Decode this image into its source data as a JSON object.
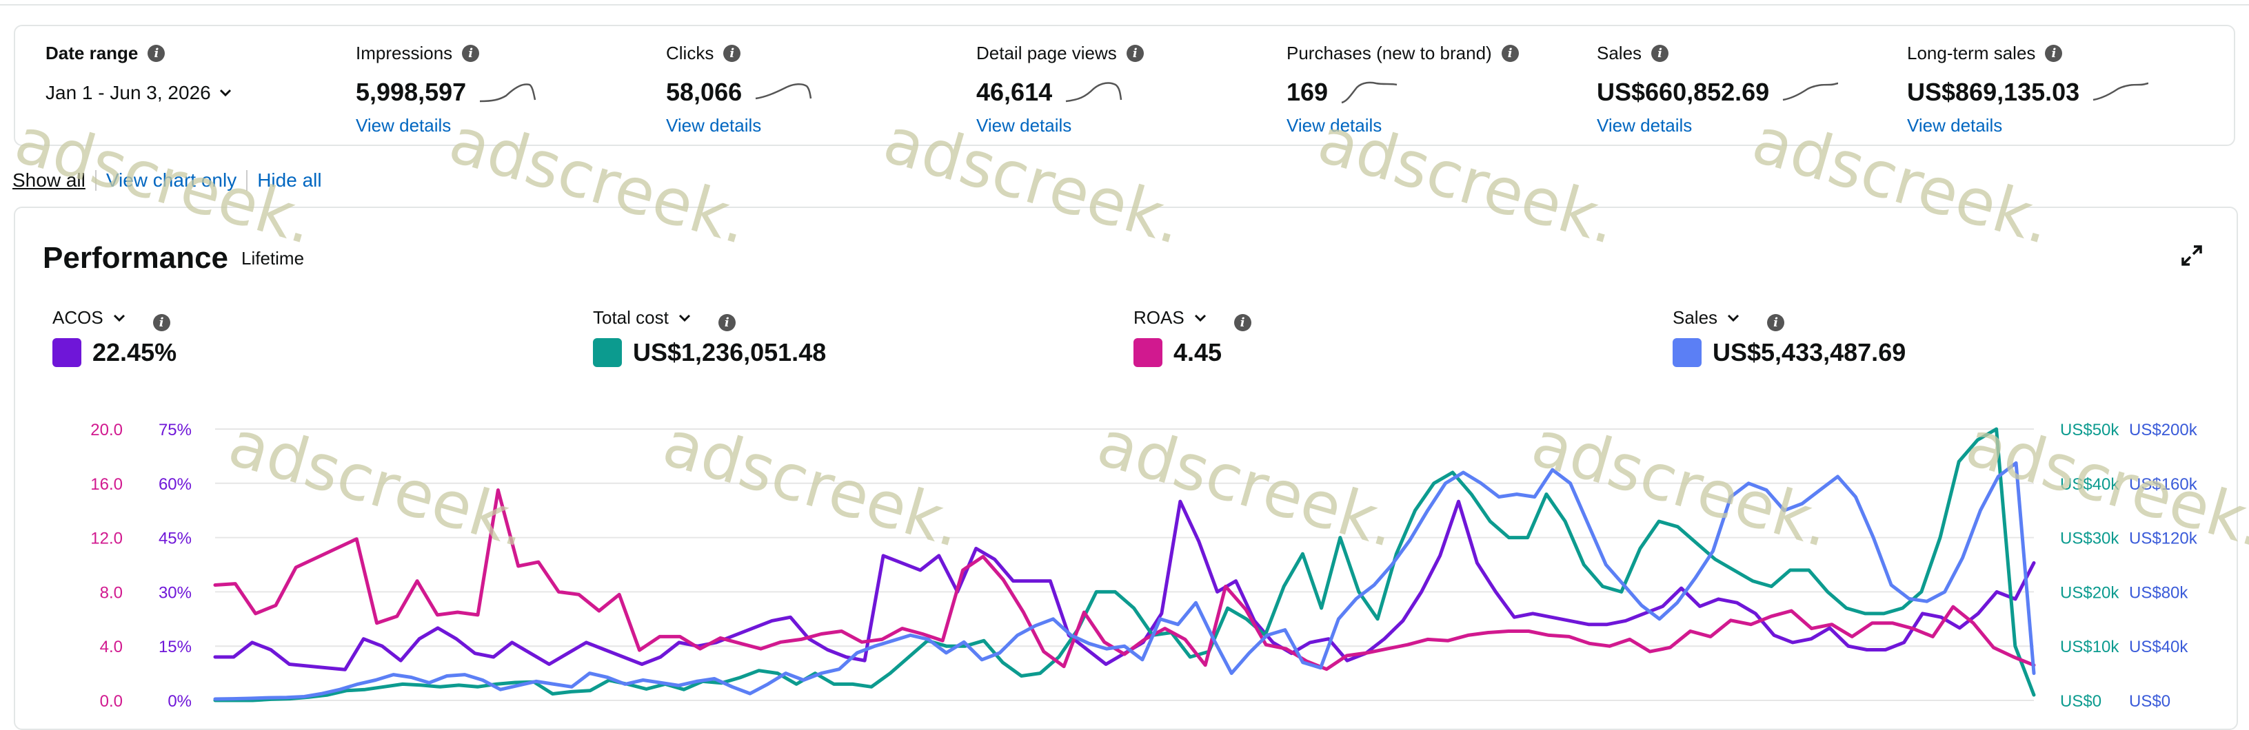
{
  "metrics": {
    "date_range": {
      "label": "Date range",
      "value": "Jan 1 - Jun 3, 2026"
    },
    "cards": [
      {
        "label": "Impressions",
        "value": "5,998,597",
        "link": "View details"
      },
      {
        "label": "Clicks",
        "value": "58,066",
        "link": "View details"
      },
      {
        "label": "Detail page views",
        "value": "46,614",
        "link": "View details"
      },
      {
        "label": "Purchases (new to brand)",
        "value": "169",
        "link": "View details"
      },
      {
        "label": "Sales",
        "value": "US$660,852.69",
        "link": "View details"
      },
      {
        "label": "Long-term sales",
        "value": "US$869,135.03",
        "link": "View details"
      }
    ]
  },
  "toggles": {
    "show_all": "Show all",
    "chart_only": "View chart only",
    "hide_all": "Hide all"
  },
  "performance": {
    "title": "Performance",
    "subtitle": "Lifetime",
    "kpis": [
      {
        "label": "ACOS",
        "value": "22.45%",
        "color": "#6f16d8"
      },
      {
        "label": "Total cost",
        "value": "US$1,236,051.48",
        "color": "#0c9b8f"
      },
      {
        "label": "ROAS",
        "value": "4.45",
        "color": "#d1198f"
      },
      {
        "label": "Sales",
        "value": "US$5,433,487.69",
        "color": "#5b7ff5"
      }
    ]
  },
  "watermark_text": "adscreek.",
  "chart_data": {
    "type": "line",
    "axes": {
      "roas_ticks": [
        "20.0",
        "16.0",
        "12.0",
        "8.0",
        "4.0",
        "0.0"
      ],
      "acos_ticks": [
        "75%",
        "60%",
        "45%",
        "30%",
        "15%",
        "0%"
      ],
      "cost_ticks": [
        "US$50k",
        "US$40k",
        "US$30k",
        "US$20k",
        "US$10k",
        "US$0"
      ],
      "sales_ticks": [
        "US$200k",
        "US$160k",
        "US$120k",
        "US$80k",
        "US$40k",
        "US$0"
      ],
      "roas_range": [
        0,
        20
      ],
      "acos_range": [
        0,
        75
      ],
      "cost_range": [
        0,
        50000
      ],
      "sales_range": [
        0,
        200000
      ]
    },
    "series": [
      {
        "name": "ACOS",
        "axis": "acos",
        "color": "#6f16d8",
        "values": [
          12,
          12,
          16,
          14,
          10,
          9.5,
          9,
          8.5,
          17,
          15,
          11,
          17,
          20,
          17,
          13,
          12,
          16,
          13,
          10,
          13,
          16,
          14,
          12,
          10,
          12,
          16,
          15,
          16,
          18,
          20,
          22,
          23,
          17,
          14,
          12,
          11,
          40,
          38,
          36,
          40,
          30,
          42,
          39,
          33,
          33,
          33,
          18,
          14,
          10,
          13,
          16,
          24,
          55,
          44,
          30,
          33,
          22,
          16,
          13,
          16,
          17,
          11,
          13,
          17,
          22,
          30,
          40,
          55,
          38,
          30,
          23,
          24,
          23,
          22,
          21,
          21,
          22,
          24,
          26,
          31,
          26,
          28,
          27,
          24,
          18,
          16,
          17,
          20,
          15,
          14,
          14,
          16,
          24,
          23,
          20,
          24,
          30,
          28,
          38
        ]
      },
      {
        "name": "Total cost",
        "axis": "cost",
        "color": "#0c9b8f",
        "values": [
          0,
          0,
          0,
          200,
          300,
          600,
          1000,
          1800,
          2000,
          2500,
          3000,
          2800,
          2500,
          2800,
          2500,
          3000,
          3300,
          3400,
          1200,
          1600,
          1800,
          3700,
          3000,
          2100,
          3000,
          2000,
          3500,
          3200,
          4200,
          5500,
          5000,
          3000,
          5000,
          3000,
          3000,
          2500,
          5000,
          8000,
          11000,
          10000,
          10000,
          11000,
          7000,
          4500,
          5000,
          8000,
          13000,
          20000,
          20000,
          17000,
          12000,
          12500,
          8000,
          9000,
          17000,
          15000,
          12000,
          21000,
          27000,
          17000,
          30000,
          20000,
          15000,
          27000,
          35000,
          40000,
          42000,
          38000,
          33000,
          30000,
          30000,
          38000,
          33000,
          25000,
          21000,
          20000,
          28000,
          33000,
          32000,
          29000,
          26000,
          24000,
          22000,
          21000,
          24000,
          24000,
          20000,
          17000,
          16000,
          16000,
          17000,
          20000,
          30000,
          44000,
          48000,
          50000,
          10000,
          1000
        ]
      },
      {
        "name": "ROAS",
        "axis": "roas",
        "color": "#d1198f",
        "values": [
          8.5,
          8.6,
          6.4,
          7,
          9.8,
          10.5,
          11.2,
          11.9,
          5.7,
          6.2,
          8.8,
          6.3,
          6.5,
          6.3,
          15.5,
          9.9,
          10.2,
          8,
          7.8,
          6.6,
          7.8,
          3.7,
          4.7,
          4.7,
          3.8,
          4.6,
          4.2,
          3.8,
          4.3,
          4.5,
          4.9,
          5.1,
          4.3,
          4.5,
          5.3,
          4.9,
          4.4,
          9.6,
          10.6,
          8.9,
          6.5,
          3.6,
          2.5,
          6.5,
          4.3,
          3.4,
          4.5,
          5.3,
          4.5,
          2.6,
          8.4,
          6.7,
          4.1,
          3.8,
          2.9,
          2.3,
          3.3,
          3.5,
          3.8,
          4.1,
          4.5,
          4.4,
          4.8,
          5,
          5.1,
          5.1,
          4.8,
          4.7,
          4.2,
          4,
          4.5,
          3.6,
          3.9,
          5.1,
          4.7,
          5.9,
          5.6,
          6.2,
          6.6,
          5.3,
          5.6,
          4.7,
          5.7,
          5.7,
          5.3,
          4.7,
          6.9,
          5.7,
          3.9,
          3.2,
          2.6
        ]
      },
      {
        "name": "Sales",
        "axis": "sales",
        "color": "#5b7ff5",
        "values": [
          1000,
          1200,
          1500,
          2000,
          2200,
          2800,
          5000,
          8000,
          12000,
          15000,
          19000,
          17000,
          13000,
          18000,
          19000,
          15000,
          8000,
          11000,
          14000,
          12000,
          10000,
          20000,
          17000,
          12000,
          15000,
          13000,
          11000,
          14000,
          16000,
          10000,
          5000,
          12000,
          20000,
          15000,
          20000,
          23000,
          35000,
          40000,
          44000,
          48000,
          45000,
          35000,
          43000,
          30000,
          35000,
          48000,
          55000,
          60000,
          48000,
          42000,
          38000,
          40000,
          30000,
          60000,
          56000,
          72000,
          45000,
          20000,
          35000,
          48000,
          52000,
          28000,
          24000,
          60000,
          75000,
          85000,
          100000,
          118000,
          140000,
          160000,
          168000,
          160000,
          150000,
          152000,
          150000,
          170000,
          160000,
          130000,
          100000,
          85000,
          70000,
          60000,
          72000,
          90000,
          110000,
          150000,
          160000,
          155000,
          140000,
          145000,
          155000,
          165000,
          150000,
          120000,
          85000,
          75000,
          73000,
          80000,
          105000,
          140000,
          165000,
          175000,
          20000
        ]
      }
    ]
  }
}
